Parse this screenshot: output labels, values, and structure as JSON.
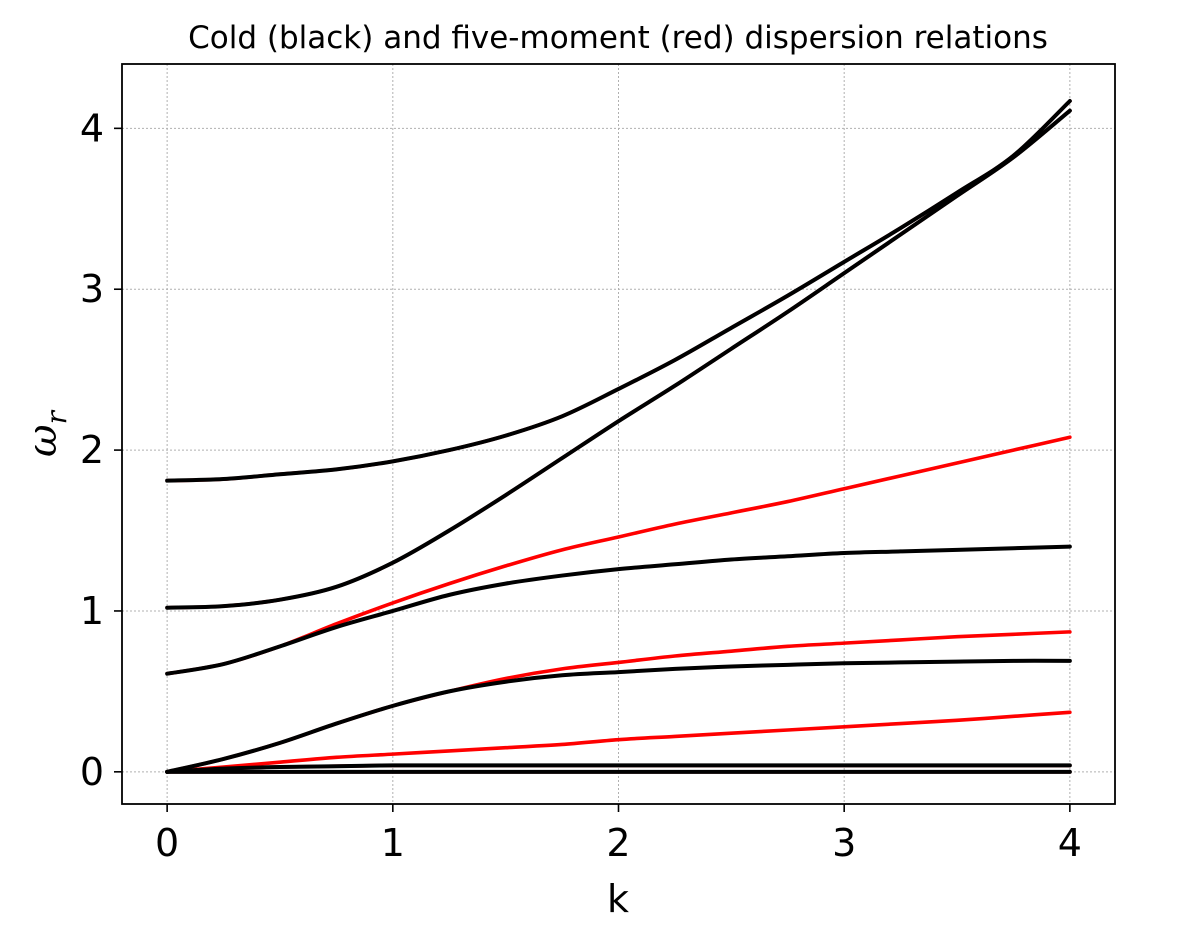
{
  "chart_data": {
    "type": "line",
    "title": "Cold (black) and five-moment (red) dispersion relations",
    "xlabel": "k",
    "ylabel": "ω",
    "ylabel_subscript": "r",
    "xlim": [
      -0.2,
      4.2
    ],
    "ylim": [
      -0.2,
      4.4
    ],
    "xticks": [
      0,
      1,
      2,
      3,
      4
    ],
    "yticks": [
      0,
      1,
      2,
      3,
      4
    ],
    "grid": true,
    "colors": {
      "cold": "#000000",
      "five_moment": "#ff0000",
      "grid": "#b0b0b0"
    },
    "x": [
      0,
      0.25,
      0.5,
      0.75,
      1,
      1.25,
      1.5,
      1.75,
      2,
      2.25,
      2.5,
      2.75,
      3,
      3.25,
      3.5,
      3.75,
      4
    ],
    "series": [
      {
        "group": "five_moment",
        "values": [
          1.81,
          1.82,
          1.85,
          1.88,
          1.93,
          2.0,
          2.09,
          2.21,
          2.38,
          2.56,
          2.76,
          2.96,
          3.17,
          3.38,
          3.6,
          3.83,
          4.17
        ]
      },
      {
        "group": "five_moment",
        "values": [
          1.02,
          1.03,
          1.07,
          1.15,
          1.3,
          1.5,
          1.72,
          1.95,
          2.18,
          2.4,
          2.63,
          2.86,
          3.1,
          3.34,
          3.58,
          3.82,
          4.11
        ]
      },
      {
        "group": "five_moment",
        "values": [
          0.61,
          0.67,
          0.78,
          0.92,
          1.05,
          1.17,
          1.28,
          1.38,
          1.46,
          1.54,
          1.61,
          1.68,
          1.76,
          1.84,
          1.92,
          2.0,
          2.08
        ]
      },
      {
        "group": "five_moment",
        "values": [
          0.0,
          0.08,
          0.18,
          0.3,
          0.41,
          0.5,
          0.58,
          0.64,
          0.68,
          0.72,
          0.75,
          0.78,
          0.8,
          0.82,
          0.84,
          0.855,
          0.87
        ]
      },
      {
        "group": "five_moment",
        "values": [
          0.0,
          0.03,
          0.06,
          0.09,
          0.11,
          0.13,
          0.15,
          0.17,
          0.2,
          0.22,
          0.24,
          0.26,
          0.28,
          0.3,
          0.32,
          0.345,
          0.37
        ]
      },
      {
        "group": "five_moment",
        "values": [
          0.0,
          0.02,
          0.03,
          0.035,
          0.04,
          0.04,
          0.04,
          0.04,
          0.04,
          0.04,
          0.04,
          0.04,
          0.04,
          0.04,
          0.04,
          0.04,
          0.04
        ]
      },
      {
        "group": "five_moment",
        "values": [
          0,
          0,
          0,
          0,
          0,
          0,
          0,
          0,
          0,
          0,
          0,
          0,
          0,
          0,
          0,
          0,
          0
        ]
      },
      {
        "group": "cold",
        "values": [
          1.81,
          1.82,
          1.85,
          1.88,
          1.93,
          2.0,
          2.09,
          2.21,
          2.38,
          2.56,
          2.76,
          2.96,
          3.17,
          3.38,
          3.6,
          3.83,
          4.17
        ]
      },
      {
        "group": "cold",
        "values": [
          1.02,
          1.03,
          1.07,
          1.15,
          1.3,
          1.5,
          1.72,
          1.95,
          2.18,
          2.4,
          2.63,
          2.86,
          3.1,
          3.34,
          3.58,
          3.82,
          4.11
        ]
      },
      {
        "group": "cold",
        "values": [
          0.61,
          0.67,
          0.78,
          0.9,
          1.0,
          1.1,
          1.17,
          1.22,
          1.26,
          1.29,
          1.32,
          1.34,
          1.36,
          1.37,
          1.38,
          1.39,
          1.4
        ]
      },
      {
        "group": "cold",
        "values": [
          0.0,
          0.08,
          0.18,
          0.3,
          0.41,
          0.5,
          0.56,
          0.6,
          0.62,
          0.64,
          0.655,
          0.665,
          0.675,
          0.68,
          0.685,
          0.69,
          0.69
        ]
      },
      {
        "group": "cold",
        "values": [
          0.0,
          0.02,
          0.03,
          0.035,
          0.04,
          0.04,
          0.04,
          0.04,
          0.04,
          0.04,
          0.04,
          0.04,
          0.04,
          0.04,
          0.04,
          0.04,
          0.04
        ]
      },
      {
        "group": "cold",
        "values": [
          0,
          0,
          0,
          0,
          0,
          0,
          0,
          0,
          0,
          0,
          0,
          0,
          0,
          0,
          0,
          0,
          0
        ]
      }
    ]
  }
}
